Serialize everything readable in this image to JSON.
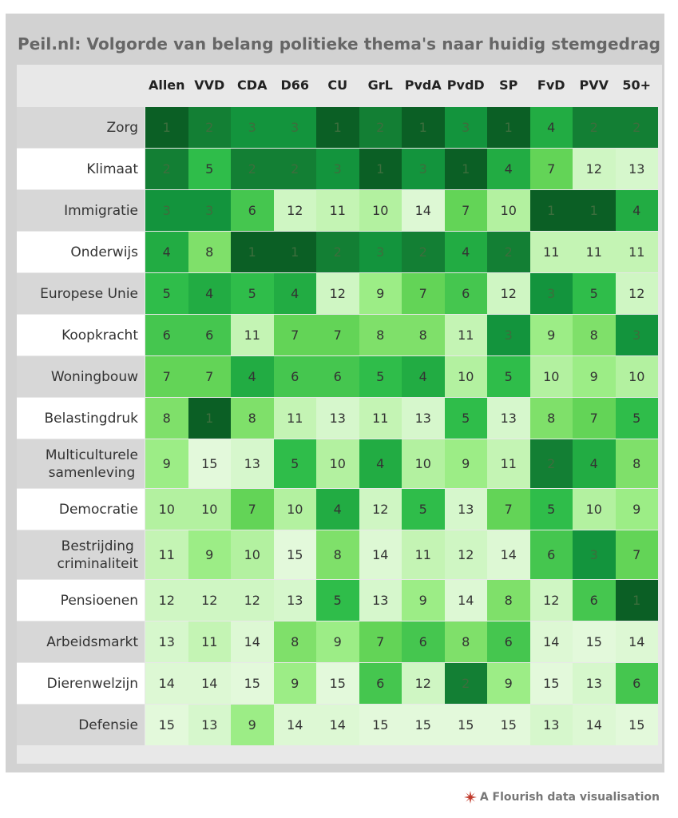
{
  "title": "Peil.nl: Volgorde van belang politieke thema's naar huidig stemgedrag",
  "credit": "A Flourish data visualisation",
  "colors": {
    "scale": [
      "#0b5f25",
      "#137f34",
      "#13943d",
      "#22ac43",
      "#2fbd4a",
      "#45c64f",
      "#63d457",
      "#7fe06a",
      "#9ced86",
      "#b3f1a0",
      "#c4f4b4",
      "#cff6c3",
      "#d6f7cc",
      "#ddf8d4",
      "#e3f9db"
    ],
    "row_label_bg_alt": "#d7d7d7",
    "row_label_bg": "#ffffff",
    "header_bg": "#e8e8e8",
    "credit_icon": "#c0392b"
  },
  "chart_data": {
    "type": "heatmap",
    "title": "Peil.nl: Volgorde van belang politieke thema's naar huidig stemgedrag",
    "columns": [
      "Allen",
      "VVD",
      "CDA",
      "D66",
      "CU",
      "GrL",
      "PvdA",
      "PvdD",
      "SP",
      "FvD",
      "PVV",
      "50+"
    ],
    "rows": [
      {
        "label": "Zorg",
        "values": [
          1,
          2,
          3,
          3,
          1,
          2,
          1,
          3,
          1,
          4,
          2,
          2
        ]
      },
      {
        "label": "Klimaat",
        "values": [
          2,
          5,
          2,
          2,
          3,
          1,
          3,
          1,
          4,
          7,
          12,
          13
        ]
      },
      {
        "label": "Immigratie",
        "values": [
          3,
          3,
          6,
          12,
          11,
          10,
          14,
          7,
          10,
          1,
          1,
          4
        ]
      },
      {
        "label": "Onderwijs",
        "values": [
          4,
          8,
          1,
          1,
          2,
          3,
          2,
          4,
          2,
          11,
          11,
          11
        ]
      },
      {
        "label": "Europese Unie",
        "values": [
          5,
          4,
          5,
          4,
          12,
          9,
          7,
          6,
          12,
          3,
          5,
          12
        ]
      },
      {
        "label": "Koopkracht",
        "values": [
          6,
          6,
          11,
          7,
          7,
          8,
          8,
          11,
          3,
          9,
          8,
          3
        ]
      },
      {
        "label": "Woningbouw",
        "values": [
          7,
          7,
          4,
          6,
          6,
          5,
          4,
          10,
          5,
          10,
          9,
          10
        ]
      },
      {
        "label": "Belastingdruk",
        "values": [
          8,
          1,
          8,
          11,
          13,
          11,
          13,
          5,
          13,
          8,
          7,
          5
        ]
      },
      {
        "label": "Multiculturele\nsamenleving",
        "values": [
          9,
          15,
          13,
          5,
          10,
          4,
          10,
          9,
          11,
          2,
          4,
          8
        ]
      },
      {
        "label": "Democratie",
        "values": [
          10,
          10,
          7,
          10,
          4,
          12,
          5,
          13,
          7,
          5,
          10,
          9
        ]
      },
      {
        "label": "Bestrijding\ncriminaliteit",
        "values": [
          11,
          9,
          10,
          15,
          8,
          14,
          11,
          12,
          14,
          6,
          3,
          7
        ]
      },
      {
        "label": "Pensioenen",
        "values": [
          12,
          12,
          12,
          13,
          5,
          13,
          9,
          14,
          8,
          12,
          6,
          1
        ]
      },
      {
        "label": "Arbeidsmarkt",
        "values": [
          13,
          11,
          14,
          8,
          9,
          7,
          6,
          8,
          6,
          14,
          15,
          14
        ]
      },
      {
        "label": "Dierenwelzijn",
        "values": [
          14,
          14,
          15,
          9,
          15,
          6,
          12,
          2,
          9,
          15,
          13,
          6
        ]
      },
      {
        "label": "Defensie",
        "values": [
          15,
          13,
          9,
          14,
          14,
          15,
          15,
          15,
          15,
          13,
          14,
          15
        ]
      }
    ]
  }
}
